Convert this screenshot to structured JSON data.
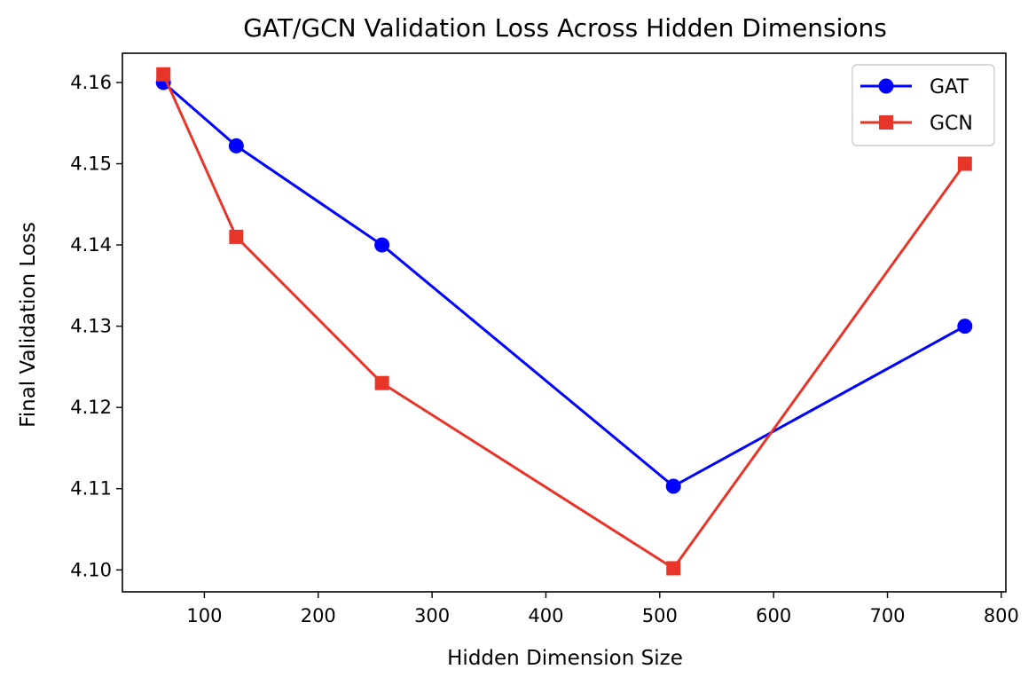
{
  "chart_data": {
    "type": "line",
    "title": "GAT/GCN Validation Loss Across Hidden Dimensions",
    "xlabel": "Hidden Dimension Size",
    "ylabel": "Final Validation Loss",
    "xlim": [
      28,
      804
    ],
    "ylim": [
      4.0973,
      4.1636
    ],
    "xticks": [
      100,
      200,
      300,
      400,
      500,
      600,
      700,
      800
    ],
    "yticks": [
      4.1,
      4.11,
      4.12,
      4.13,
      4.14,
      4.15,
      4.16
    ],
    "xtick_labels": [
      "100",
      "200",
      "300",
      "400",
      "500",
      "600",
      "700",
      "800"
    ],
    "ytick_labels": [
      "4.10",
      "4.11",
      "4.12",
      "4.13",
      "4.14",
      "4.15",
      "4.16"
    ],
    "grid": false,
    "legend_position": "top-right",
    "series": [
      {
        "name": "GAT",
        "marker": "circle",
        "color": "#0000ff",
        "x": [
          64,
          128,
          256,
          512,
          768
        ],
        "y": [
          4.16,
          4.1522,
          4.14,
          4.1103,
          4.13
        ]
      },
      {
        "name": "GCN",
        "marker": "square",
        "color": "#e8352a",
        "x": [
          64,
          128,
          256,
          512,
          768
        ],
        "y": [
          4.161,
          4.141,
          4.123,
          4.1002,
          4.15
        ]
      }
    ]
  }
}
